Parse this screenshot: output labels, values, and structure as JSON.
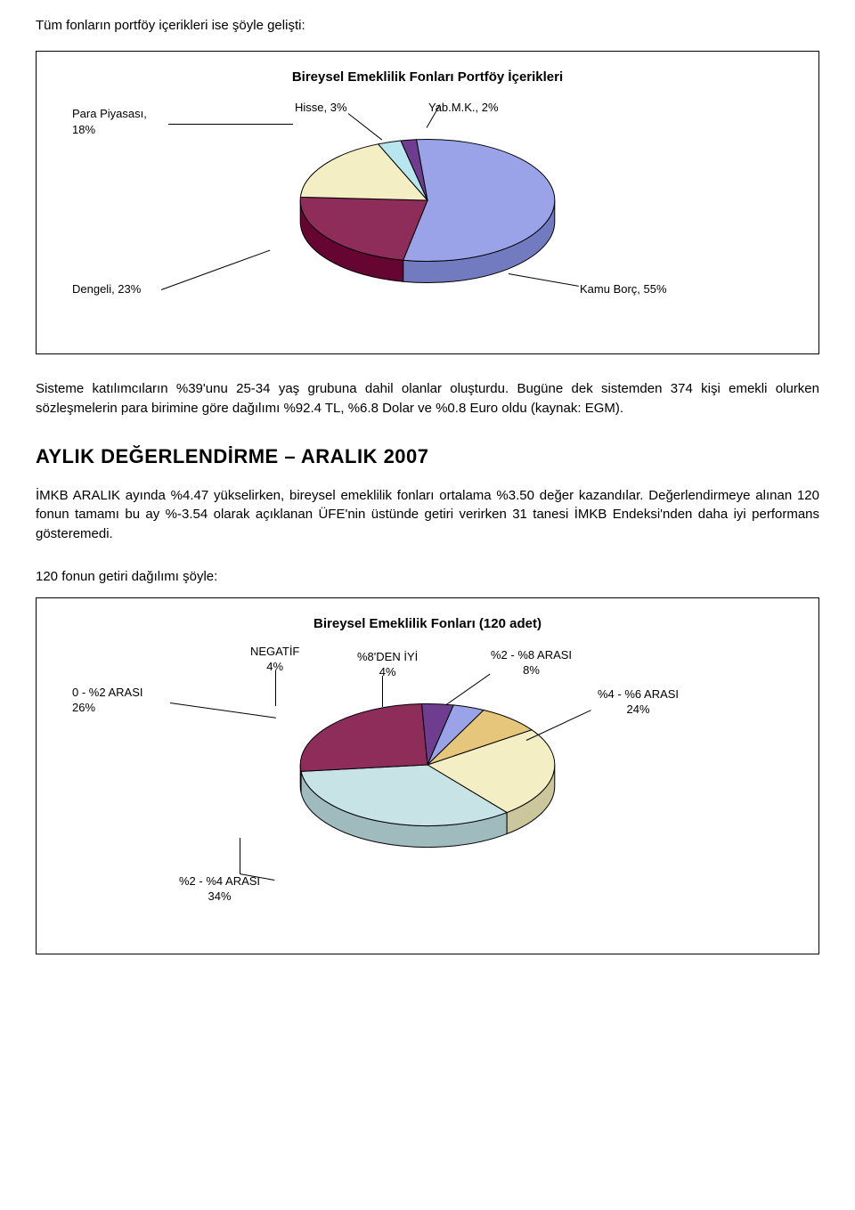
{
  "intro_text": "Tüm fonların portföy içerikleri ise şöyle gelişti:",
  "chart1": {
    "type": "pie",
    "title": "Bireysel Emeklilik Fonları Portföy İçerikleri",
    "labels": {
      "para": "Para Piyasası,\n18%",
      "hisse": "Hisse, 3%",
      "yab": "Yab.M.K., 2%",
      "dengeli": "Dengeli, 23%",
      "kamu": "Kamu Borç, 55%"
    },
    "slices": [
      {
        "name": "Kamu Borç",
        "value": 55,
        "color": "#9aa3e8"
      },
      {
        "name": "Dengeli",
        "value": 23,
        "color": "#8e2c5a"
      },
      {
        "name": "Para Piyasası",
        "value": 18,
        "color": "#f4eec4"
      },
      {
        "name": "Hisse",
        "value": 3,
        "color": "#b7e6ee"
      },
      {
        "name": "Yab.M.K.",
        "value": 2,
        "color": "#6f3d8f"
      }
    ],
    "side_color": "#565c8f",
    "stroke": "#000000"
  },
  "para1": "Sisteme katılımcıların %39'unu 25-34 yaş grubuna dahil olanlar oluşturdu.  Bugüne dek sistemden 374 kişi emekli olurken sözleşmelerin para birimine göre dağılımı %92.4 TL, %6.8 Dolar ve %0.8 Euro oldu (kaynak: EGM).",
  "section_heading": "AYLIK DEĞERLENDİRME – ARALIK 2007",
  "para2": "İMKB ARALIK ayında %4.47 yükselirken, bireysel emeklilik fonları ortalama %3.50 değer kazandılar.  Değerlendirmeye alınan 120 fonun tamamı bu ay %-3.54 olarak açıklanan ÜFE'nin üstünde getiri verirken 31 tanesi İMKB Endeksi'nden daha iyi performans gösteremedi.",
  "para3": "120 fonun getiri dağılımı şöyle:",
  "chart2": {
    "type": "pie",
    "title": "Bireysel Emeklilik Fonları (120 adet)",
    "labels": {
      "range_0_2": "0 - %2 ARASI\n26%",
      "negatif": "NEGATİF\n4%",
      "iyi8": "%8'DEN İYİ\n4%",
      "range_2_8": "%2 - %8 ARASI\n8%",
      "range_4_6": "%4 - %6 ARASI\n24%",
      "range_2_4": "%2 - %4 ARASI\n34%"
    },
    "slices": [
      {
        "name": "%4 - %6 ARASI",
        "value": 24,
        "color": "#f4eec4"
      },
      {
        "name": "%2 - %4 ARASI",
        "value": 34,
        "color": "#c7e3e6"
      },
      {
        "name": "0 - %2 ARASI",
        "value": 26,
        "color": "#8e2c5a"
      },
      {
        "name": "NEGATİF",
        "value": 4,
        "color": "#6f3d8f"
      },
      {
        "name": "%8'DEN İYİ",
        "value": 4,
        "color": "#9aa3e8"
      },
      {
        "name": "%2 - %8 ARASI",
        "value": 8,
        "color": "#e6c67a"
      }
    ],
    "side_color": "#7a8a8e",
    "stroke": "#000000"
  }
}
